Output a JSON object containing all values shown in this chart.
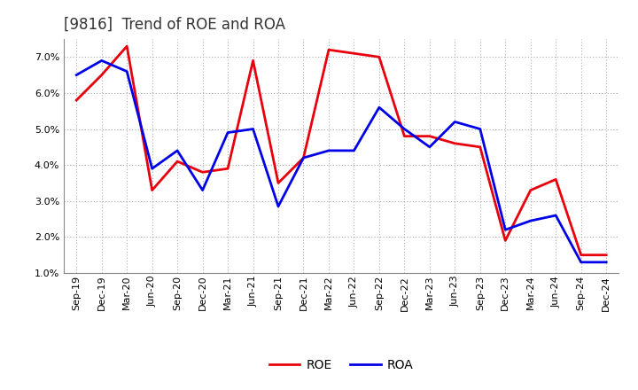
{
  "title": "[9816]  Trend of ROE and ROA",
  "labels": [
    "Sep-19",
    "Dec-19",
    "Mar-20",
    "Jun-20",
    "Sep-20",
    "Dec-20",
    "Mar-21",
    "Jun-21",
    "Sep-21",
    "Dec-21",
    "Mar-22",
    "Jun-22",
    "Sep-22",
    "Dec-22",
    "Mar-23",
    "Jun-23",
    "Sep-23",
    "Dec-23",
    "Mar-24",
    "Jun-24",
    "Sep-24",
    "Dec-24"
  ],
  "ROE": [
    5.8,
    6.5,
    7.3,
    3.3,
    4.1,
    3.8,
    3.9,
    6.9,
    3.5,
    4.2,
    7.2,
    7.1,
    7.0,
    4.8,
    4.8,
    4.6,
    4.5,
    1.9,
    3.3,
    3.6,
    1.5,
    1.5
  ],
  "ROA": [
    6.5,
    6.9,
    6.6,
    3.9,
    4.4,
    3.3,
    4.9,
    5.0,
    2.85,
    4.2,
    4.4,
    4.4,
    5.6,
    5.0,
    4.5,
    5.2,
    5.0,
    2.2,
    2.45,
    2.6,
    1.3,
    1.3
  ],
  "ROE_color": "#e8000d",
  "ROA_color": "#0000e8",
  "ylim": [
    1.0,
    7.5
  ],
  "yticks": [
    1.0,
    2.0,
    3.0,
    4.0,
    5.0,
    6.0,
    7.0
  ],
  "bg_color": "#ffffff",
  "grid_color": "#aaaaaa",
  "title_fontsize": 12,
  "axis_fontsize": 8,
  "legend_fontsize": 10,
  "linewidth": 2.0
}
